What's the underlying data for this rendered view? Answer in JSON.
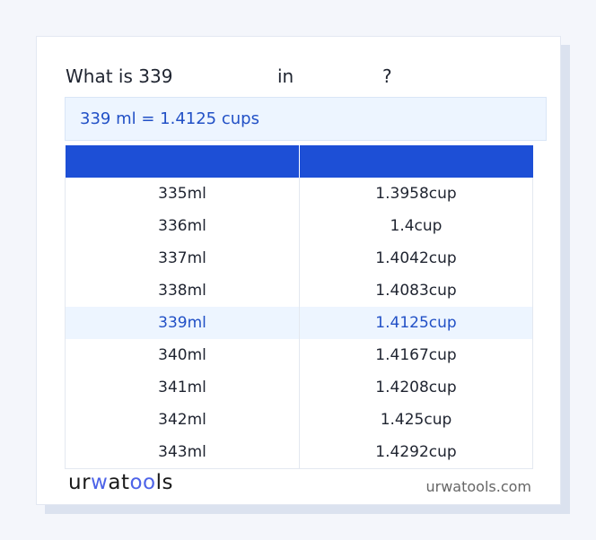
{
  "question": {
    "prefix": "What is 339",
    "in": "in",
    "suffix": "?"
  },
  "result": "339 ml = 1.4125 cups",
  "table": {
    "headers": [
      "",
      ""
    ],
    "rows": [
      {
        "ml": "335ml",
        "cup": "1.3958cup"
      },
      {
        "ml": "336ml",
        "cup": "1.4cup"
      },
      {
        "ml": "337ml",
        "cup": "1.4042cup"
      },
      {
        "ml": "338ml",
        "cup": "1.4083cup"
      },
      {
        "ml": "339ml",
        "cup": "1.4125cup",
        "highlighted": true
      },
      {
        "ml": "340ml",
        "cup": "1.4167cup"
      },
      {
        "ml": "341ml",
        "cup": "1.4208cup"
      },
      {
        "ml": "342ml",
        "cup": "1.425cup"
      },
      {
        "ml": "343ml",
        "cup": "1.4292cup"
      }
    ]
  },
  "footer": {
    "logo": "urwatools",
    "site": "urwatools.com"
  },
  "colors": {
    "accent": "#1d4fd6",
    "highlight": "#edf5ff",
    "highlight_text": "#2150c6"
  }
}
